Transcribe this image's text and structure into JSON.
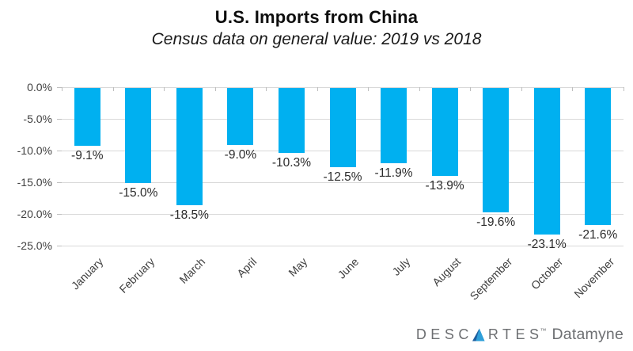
{
  "chart_data": {
    "type": "bar",
    "title": "U.S. Imports from China",
    "subtitle": "Census data on general value: 2019 vs 2018",
    "categories": [
      "January",
      "February",
      "March",
      "April",
      "May",
      "June",
      "July",
      "August",
      "September",
      "October",
      "November"
    ],
    "values": [
      -9.1,
      -15.0,
      -18.5,
      -9.0,
      -10.3,
      -12.5,
      -11.9,
      -13.9,
      -19.6,
      -23.1,
      -21.6
    ],
    "data_labels": [
      "-9.1%",
      "-15.0%",
      "-18.5%",
      "-9.0%",
      "-10.3%",
      "-12.5%",
      "-11.9%",
      "-13.9%",
      "-19.6%",
      "-23.1%",
      "-21.6%"
    ],
    "ytick_labels": [
      "0.0%",
      "-5.0%",
      "-10.0%",
      "-15.0%",
      "-20.0%",
      "-25.0%"
    ],
    "ylim": [
      -25,
      0
    ],
    "ytick_step": 5,
    "grid": true,
    "legend": false,
    "xlabel": "",
    "ylabel": "",
    "bar_color": "#00b0f0",
    "gridline_color": "#d9d9d9",
    "tick_color": "#bfbfbf",
    "axis_text_color": "#404040",
    "data_label_color": "#2b2b2b"
  },
  "branding": {
    "brand_prefix": "DESC",
    "brand_suffix": "RTES",
    "trademark": "™",
    "product": "Datamyne",
    "text_color": "#6d6f72",
    "triangle_dark": "#1d5f9f",
    "triangle_light": "#2f9fd9"
  }
}
